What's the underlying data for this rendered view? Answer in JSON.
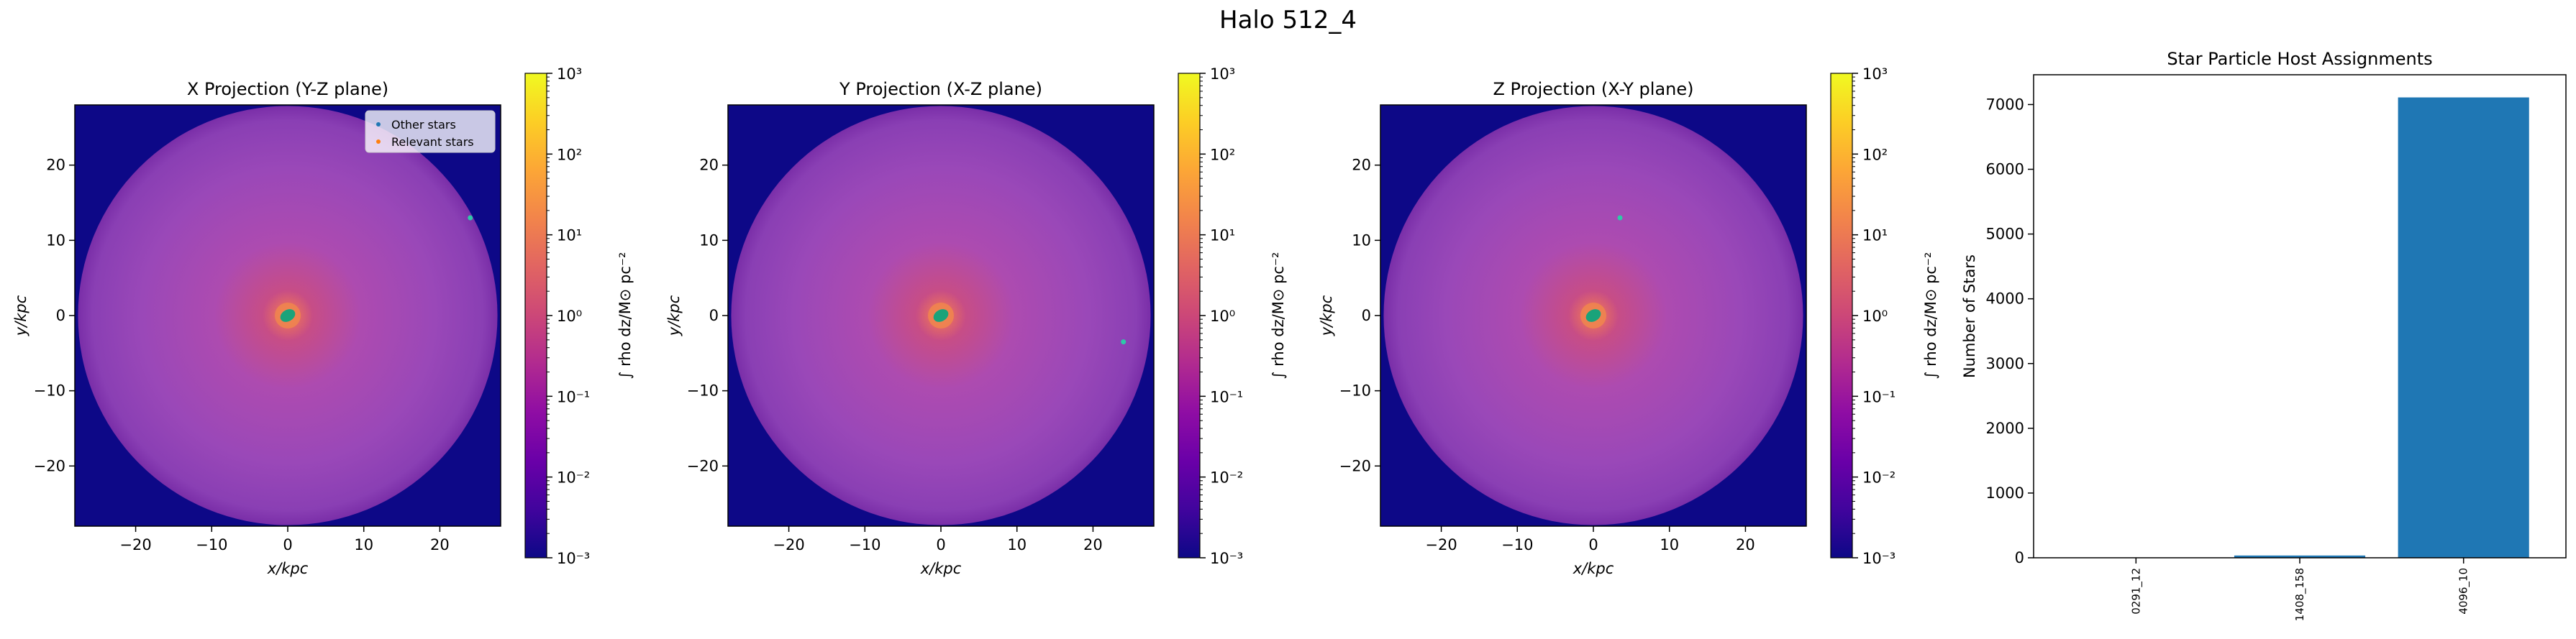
{
  "figure": {
    "title": "Halo 512_4"
  },
  "chart_data": [
    {
      "type": "heatmap",
      "title": "X Projection (Y-Z plane)",
      "xlabel": "x/kpc",
      "ylabel": "y/kpc",
      "xlim": [
        -28,
        28
      ],
      "ylim": [
        -28,
        28
      ],
      "xticks": [
        -20,
        -10,
        0,
        10,
        20
      ],
      "yticks": [
        -20,
        -10,
        0,
        10,
        20
      ],
      "colorbar": {
        "label": "∫ rho dz/M⊙ pc⁻²",
        "scale": "log",
        "colormap": "plasma",
        "ticks": [
          "10⁻³",
          "10⁻²",
          "10⁻¹",
          "10⁰",
          "10¹",
          "10²",
          "10³"
        ]
      },
      "legend": {
        "position": "upper right",
        "entries": [
          {
            "label": "Other stars",
            "color": "#1f77b4"
          },
          {
            "label": "Relevant stars",
            "color": "#ff7f0e"
          }
        ]
      },
      "star_clumps": [
        {
          "x": 0,
          "y": 0,
          "color": "#1aa37a"
        },
        {
          "x": 24,
          "y": 13,
          "color": "#2ec9a8"
        }
      ]
    },
    {
      "type": "heatmap",
      "title": "Y Projection (X-Z plane)",
      "xlabel": "x/kpc",
      "ylabel": "y/kpc",
      "xlim": [
        -28,
        28
      ],
      "ylim": [
        -28,
        28
      ],
      "xticks": [
        -20,
        -10,
        0,
        10,
        20
      ],
      "yticks": [
        -20,
        -10,
        0,
        10,
        20
      ],
      "colorbar": {
        "label": "∫ rho dz/M⊙ pc⁻²",
        "scale": "log",
        "colormap": "plasma",
        "ticks": [
          "10⁻³",
          "10⁻²",
          "10⁻¹",
          "10⁰",
          "10¹",
          "10²",
          "10³"
        ]
      },
      "star_clumps": [
        {
          "x": 0,
          "y": 0,
          "color": "#1aa37a"
        },
        {
          "x": 24,
          "y": -3.5,
          "color": "#2ec9a8"
        }
      ]
    },
    {
      "type": "heatmap",
      "title": "Z Projection (X-Y plane)",
      "xlabel": "x/kpc",
      "ylabel": "y/kpc",
      "xlim": [
        -28,
        28
      ],
      "ylim": [
        -28,
        28
      ],
      "xticks": [
        -20,
        -10,
        0,
        10,
        20
      ],
      "yticks": [
        -20,
        -10,
        0,
        10,
        20
      ],
      "colorbar": {
        "label": "∫ rho dz/M⊙ pc⁻²",
        "scale": "log",
        "colormap": "plasma",
        "ticks": [
          "10⁻³",
          "10⁻²",
          "10⁻¹",
          "10⁰",
          "10¹",
          "10²",
          "10³"
        ]
      },
      "star_clumps": [
        {
          "x": 0,
          "y": 0,
          "color": "#1aa37a"
        },
        {
          "x": 3.5,
          "y": 13,
          "color": "#2ec9a8"
        }
      ]
    },
    {
      "type": "bar",
      "title": "Star Particle Host Assignments",
      "xlabel": "",
      "ylabel": "Number of Stars",
      "categories": [
        "0291_12",
        "1408_158",
        "4096_10"
      ],
      "values": [
        5,
        35,
        7110
      ],
      "ylim": [
        0,
        7460
      ],
      "yticks": [
        0,
        1000,
        2000,
        3000,
        4000,
        5000,
        6000,
        7000
      ],
      "bar_color": "#1f77b4"
    }
  ]
}
